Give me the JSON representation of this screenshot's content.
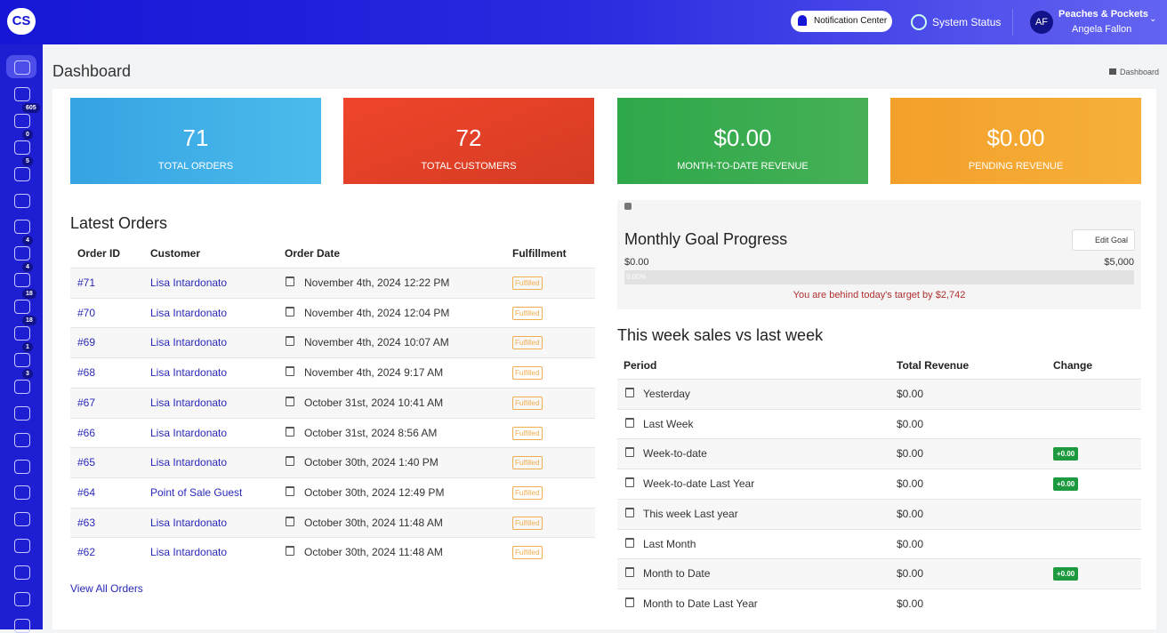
{
  "header": {
    "logo": "CS",
    "notification_center": "Notification Center",
    "system_status": "System Status",
    "store_name": "Peaches & Pockets",
    "user_initials": "AF",
    "user_name": "Angela Fallon"
  },
  "sidebar": {
    "badges": [
      605,
      0,
      5,
      4,
      4,
      18,
      18,
      1,
      3
    ]
  },
  "page": {
    "title": "Dashboard",
    "breadcrumb": "Dashboard"
  },
  "stats": [
    {
      "value": 71,
      "label": "TOTAL ORDERS"
    },
    {
      "value": 72,
      "label": "TOTAL CUSTOMERS"
    },
    {
      "value": "$0.00",
      "label": "MONTH-TO-DATE REVENUE"
    },
    {
      "value": "$0.00",
      "label": "PENDING REVENUE"
    }
  ],
  "latest_orders": {
    "title": "Latest Orders",
    "columns": [
      "Order ID",
      "Customer",
      "Order Date",
      "Fulfillment"
    ],
    "rows": [
      [
        "#71",
        "Lisa Intardonato",
        "November 4th, 2024 12:22 PM",
        "Fulfilled"
      ],
      [
        "#70",
        "Lisa Intardonato",
        "November 4th, 2024 12:04 PM",
        "Fulfilled"
      ],
      [
        "#69",
        "Lisa Intardonato",
        "November 4th, 2024 10:07 AM",
        "Fulfilled"
      ],
      [
        "#68",
        "Lisa Intardonato",
        "November 4th, 2024 9:17 AM",
        "Fulfilled"
      ],
      [
        "#67",
        "Lisa Intardonato",
        "October 31st, 2024 10:41 AM",
        "Fulfilled"
      ],
      [
        "#66",
        "Lisa Intardonato",
        "October 31st, 2024 8:56 AM",
        "Fulfilled"
      ],
      [
        "#65",
        "Lisa Intardonato",
        "October 30th, 2024 1:40 PM",
        "Fulfilled"
      ],
      [
        "#64",
        "Point of Sale Guest",
        "October 30th, 2024 12:49 PM",
        "Fulfilled"
      ],
      [
        "#63",
        "Lisa Intardonato",
        "October 30th, 2024 11:48 AM",
        "Fulfilled"
      ],
      [
        "#62",
        "Lisa Intardonato",
        "October 30th, 2024 11:48 AM",
        "Fulfilled"
      ]
    ],
    "view_all": "View All Orders"
  },
  "goal": {
    "title": "Monthly Goal Progress",
    "edit": "Edit Goal",
    "min": "$0.00",
    "max": "$5,000",
    "progress": "0.00%",
    "message": "You are behind today's target by $2,742"
  },
  "weekly": {
    "title": "This week sales vs last week",
    "columns": [
      "Period",
      "Total Revenue",
      "Change"
    ],
    "rows": [
      {
        "period": "Yesterday",
        "revenue": "$0.00"
      },
      {
        "period": "Last Week",
        "revenue": "$0.00"
      },
      {
        "period": "Week-to-date",
        "revenue": "$0.00",
        "change": "+0.00"
      },
      {
        "period": "Week-to-date Last Year",
        "revenue": "$0.00",
        "change": "+0.00"
      },
      {
        "period": "This week Last year",
        "revenue": "$0.00"
      },
      {
        "period": "Last Month",
        "revenue": "$0.00"
      },
      {
        "period": "Month to Date",
        "revenue": "$0.00",
        "change": "+0.00"
      },
      {
        "period": "Month to Date Last Year",
        "revenue": "$0.00"
      }
    ]
  }
}
